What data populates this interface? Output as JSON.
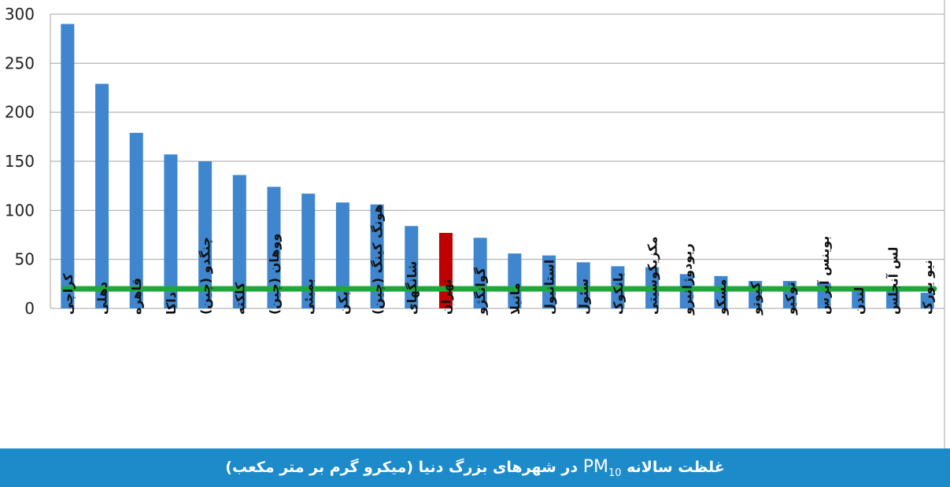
{
  "caption": {
    "before": "غلظت سالانه ",
    "pm": "PM",
    "sub": "10",
    "after": " در شهرهای بزرگ دنیا (میکرو گرم بر متر مکعب)"
  },
  "colors": {
    "bar": "#3f86cf",
    "highlight": "#c00000",
    "limit_line": "#1ea83a",
    "grid": "#a6a6a6",
    "caption_bg": "#1d8ac9"
  },
  "chart_data": {
    "type": "bar",
    "title": "",
    "xlabel": "",
    "ylabel": "",
    "ylim": [
      0,
      300
    ],
    "yticks": [
      0,
      50,
      100,
      150,
      200,
      250,
      300
    ],
    "grid": true,
    "highlight_category": "تهران",
    "categories": [
      "کراچی",
      "دهلی",
      "قاهره",
      "داکا",
      "چنگدو (چین)",
      "کلکته",
      "ووهان (چین)",
      "بمبئی",
      "پکن",
      "هونگ کینگ (چین)",
      "شانگهای",
      "تهران",
      "گوانگژو",
      "مانیلا",
      "استانبول",
      "سئول",
      "بانکوک",
      "مکزیکوسیتی",
      "ریودوژانیرو",
      "مسکو",
      "کیوتو",
      "توکیو",
      "بوینس آیرس",
      "لندن",
      "لس آنجلس",
      "نیو یورک"
    ],
    "values": [
      290,
      229,
      179,
      157,
      150,
      136,
      124,
      117,
      108,
      106,
      84,
      77,
      72,
      56,
      54,
      47,
      43,
      42,
      35,
      33,
      28,
      28,
      26,
      22,
      20,
      16
    ],
    "reference_line": {
      "value": 20
    }
  }
}
